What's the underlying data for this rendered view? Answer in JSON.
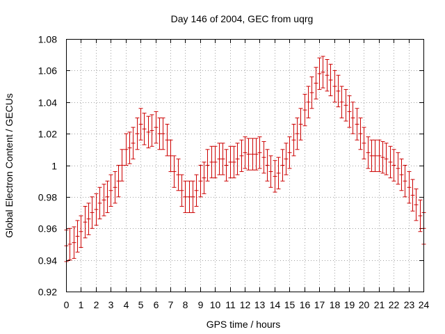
{
  "chart_data": {
    "type": "scatter",
    "title": "Day 146 of 2004, GEC from uqrg",
    "xlabel": "GPS time / hours",
    "ylabel": "Global Electron Content / GECUs",
    "xlim": [
      0,
      24
    ],
    "ylim": [
      0.92,
      1.08
    ],
    "xticks": [
      0,
      1,
      2,
      3,
      4,
      5,
      6,
      7,
      8,
      9,
      10,
      11,
      12,
      13,
      14,
      15,
      16,
      17,
      18,
      19,
      20,
      21,
      22,
      23,
      24
    ],
    "yticks": [
      0.92,
      0.94,
      0.96,
      0.98,
      1,
      1.02,
      1.04,
      1.06,
      1.08
    ],
    "ytick_labels": [
      "0.92",
      "0.94",
      "0.96",
      "0.98",
      "1",
      "1.02",
      "1.04",
      "1.06",
      "1.08"
    ],
    "grid": true,
    "color": "#cc0000",
    "error_half_width": 0.01,
    "points": [
      [
        0.0,
        0.949
      ],
      [
        0.25,
        0.95
      ],
      [
        0.5,
        0.951
      ],
      [
        0.75,
        0.955
      ],
      [
        1.0,
        0.958
      ],
      [
        1.25,
        0.964
      ],
      [
        1.5,
        0.966
      ],
      [
        1.75,
        0.97
      ],
      [
        2.0,
        0.972
      ],
      [
        2.25,
        0.976
      ],
      [
        2.5,
        0.978
      ],
      [
        2.75,
        0.98
      ],
      [
        3.0,
        0.984
      ],
      [
        3.25,
        0.986
      ],
      [
        3.5,
        0.99
      ],
      [
        3.75,
        1.0
      ],
      [
        4.0,
        1.01
      ],
      [
        4.25,
        1.011
      ],
      [
        4.5,
        1.014
      ],
      [
        4.75,
        1.02
      ],
      [
        5.0,
        1.026
      ],
      [
        5.25,
        1.023
      ],
      [
        5.5,
        1.021
      ],
      [
        5.75,
        1.022
      ],
      [
        6.0,
        1.024
      ],
      [
        6.25,
        1.02
      ],
      [
        6.5,
        1.02
      ],
      [
        6.75,
        1.016
      ],
      [
        7.0,
        1.006
      ],
      [
        7.25,
        0.996
      ],
      [
        7.5,
        0.994
      ],
      [
        7.75,
        0.984
      ],
      [
        8.0,
        0.98
      ],
      [
        8.25,
        0.98
      ],
      [
        8.5,
        0.98
      ],
      [
        8.75,
        0.984
      ],
      [
        9.0,
        0.99
      ],
      [
        9.25,
        0.992
      ],
      [
        9.5,
        1.0
      ],
      [
        9.75,
        1.002
      ],
      [
        10.0,
        1.002
      ],
      [
        10.25,
        1.004
      ],
      [
        10.5,
        1.004
      ],
      [
        10.75,
        1.0
      ],
      [
        11.0,
        1.002
      ],
      [
        11.25,
        1.002
      ],
      [
        11.5,
        1.004
      ],
      [
        11.75,
        1.006
      ],
      [
        12.0,
        1.008
      ],
      [
        12.25,
        1.007
      ],
      [
        12.5,
        1.007
      ],
      [
        12.75,
        1.007
      ],
      [
        13.0,
        1.008
      ],
      [
        13.25,
        1.005
      ],
      [
        13.5,
        1.0
      ],
      [
        13.75,
        0.996
      ],
      [
        14.0,
        0.993
      ],
      [
        14.25,
        0.995
      ],
      [
        14.5,
        1.0
      ],
      [
        14.75,
        1.004
      ],
      [
        15.0,
        1.008
      ],
      [
        15.25,
        1.016
      ],
      [
        15.5,
        1.02
      ],
      [
        15.75,
        1.026
      ],
      [
        16.0,
        1.035
      ],
      [
        16.25,
        1.04
      ],
      [
        16.5,
        1.046
      ],
      [
        16.75,
        1.052
      ],
      [
        17.0,
        1.058
      ],
      [
        17.25,
        1.059
      ],
      [
        17.5,
        1.057
      ],
      [
        17.75,
        1.054
      ],
      [
        18.0,
        1.05
      ],
      [
        18.25,
        1.047
      ],
      [
        18.5,
        1.04
      ],
      [
        18.75,
        1.038
      ],
      [
        19.0,
        1.034
      ],
      [
        19.25,
        1.03
      ],
      [
        19.5,
        1.026
      ],
      [
        19.75,
        1.02
      ],
      [
        20.0,
        1.014
      ],
      [
        20.25,
        1.008
      ],
      [
        20.5,
        1.006
      ],
      [
        20.75,
        1.006
      ],
      [
        21.0,
        1.006
      ],
      [
        21.25,
        1.005
      ],
      [
        21.5,
        1.004
      ],
      [
        21.75,
        1.002
      ],
      [
        22.0,
        1.0
      ],
      [
        22.25,
        0.998
      ],
      [
        22.5,
        0.994
      ],
      [
        22.75,
        0.99
      ],
      [
        23.0,
        0.986
      ],
      [
        23.25,
        0.981
      ],
      [
        23.5,
        0.975
      ],
      [
        23.75,
        0.968
      ],
      [
        24.0,
        0.96
      ]
    ]
  }
}
